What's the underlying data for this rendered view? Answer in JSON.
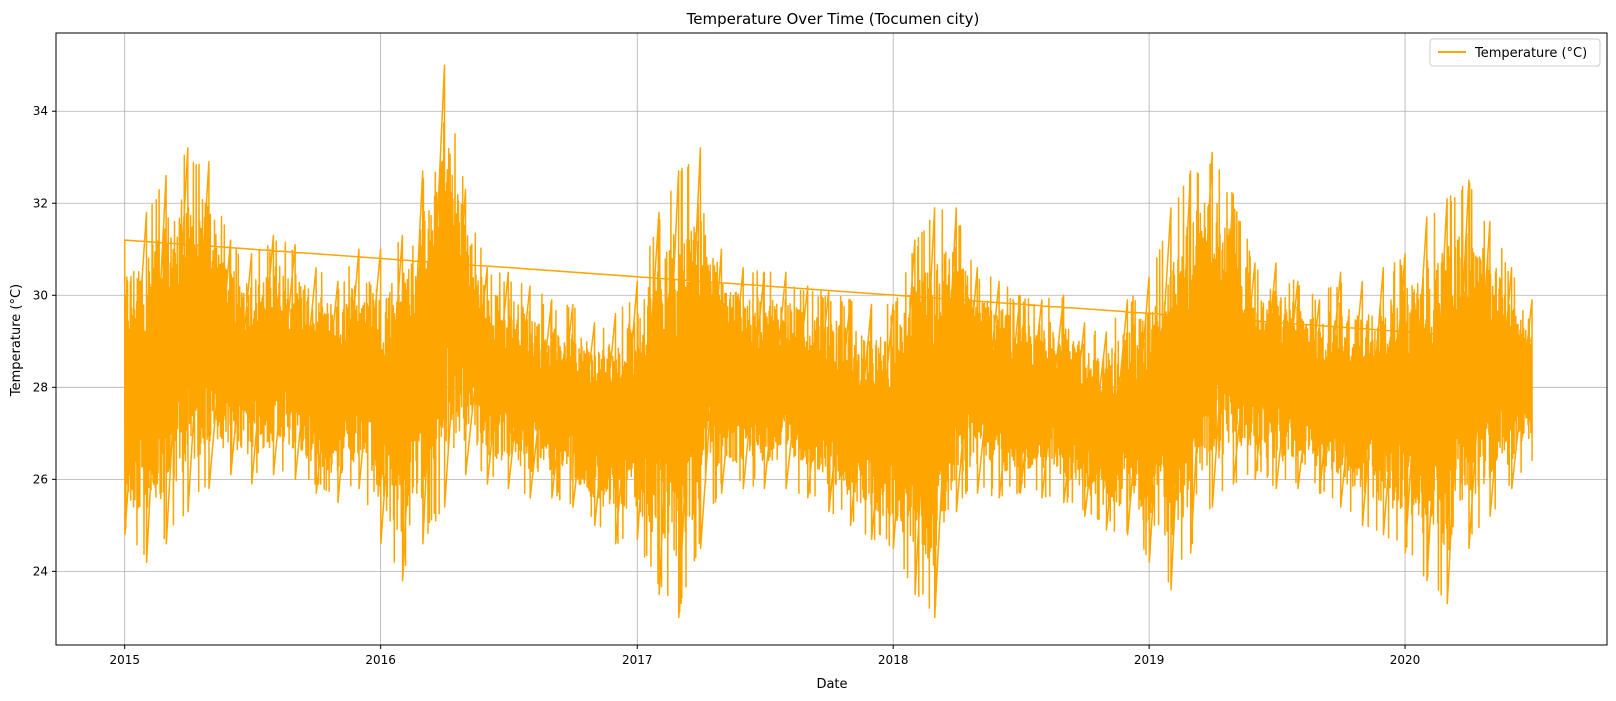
{
  "chart_data": {
    "type": "line",
    "title": "Temperature Over Time (Tocumen city)",
    "xlabel": "Date",
    "ylabel": "Temperature (°C)",
    "x_tick_labels": [
      "2015",
      "2016",
      "2017",
      "2018",
      "2019",
      "2020"
    ],
    "y_tick_labels": [
      "24",
      "26",
      "28",
      "30",
      "32",
      "34"
    ],
    "xlim": [
      "2014-09-25",
      "2020-10-15"
    ],
    "ylim": [
      22.4,
      35.7
    ],
    "x_ticks": [
      "2015-01-01",
      "2016-01-01",
      "2017-01-01",
      "2018-01-01",
      "2019-01-01",
      "2020-01-01"
    ],
    "y_ticks": [
      24,
      26,
      28,
      30,
      32,
      34
    ],
    "grid": true,
    "legend_position": "top-right",
    "series": [
      {
        "name": "Temperature (°C)",
        "color": "#ffa500",
        "x_range": [
          "2015-01-01",
          "2020-06-30"
        ],
        "envelope": {
          "dates": [
            "2015-01-01",
            "2015-02-01",
            "2015-03-01",
            "2015-04-01",
            "2015-05-01",
            "2015-06-01",
            "2015-07-01",
            "2015-08-01",
            "2015-09-01",
            "2015-10-01",
            "2015-11-01",
            "2015-12-01",
            "2016-01-01",
            "2016-02-01",
            "2016-03-01",
            "2016-04-01",
            "2016-05-01",
            "2016-06-01",
            "2016-07-01",
            "2016-08-01",
            "2016-09-01",
            "2016-10-01",
            "2016-11-01",
            "2016-12-01",
            "2017-01-01",
            "2017-02-01",
            "2017-03-01",
            "2017-04-01",
            "2017-05-01",
            "2017-06-01",
            "2017-07-01",
            "2017-08-01",
            "2017-09-01",
            "2017-10-01",
            "2017-11-01",
            "2017-12-01",
            "2018-01-01",
            "2018-02-01",
            "2018-03-01",
            "2018-04-01",
            "2018-05-01",
            "2018-06-01",
            "2018-07-01",
            "2018-08-01",
            "2018-09-01",
            "2018-10-01",
            "2018-11-01",
            "2018-12-01",
            "2019-01-01",
            "2019-02-01",
            "2019-03-01",
            "2019-04-01",
            "2019-05-01",
            "2019-06-01",
            "2019-07-01",
            "2019-08-01",
            "2019-09-01",
            "2019-10-01",
            "2019-11-01",
            "2019-12-01",
            "2020-01-01",
            "2020-02-01",
            "2020-03-01",
            "2020-04-01",
            "2020-05-01",
            "2020-06-01",
            "2020-06-30"
          ],
          "max": [
            31.2,
            31.8,
            32.6,
            33.2,
            32.9,
            31.2,
            30.9,
            31.3,
            31.1,
            30.6,
            30.3,
            31.0,
            31.0,
            31.3,
            32.7,
            35.0,
            32.3,
            30.6,
            30.5,
            30.2,
            29.9,
            29.8,
            29.4,
            29.6,
            30.3,
            31.8,
            32.7,
            33.2,
            31.0,
            30.6,
            30.5,
            30.5,
            30.2,
            30.1,
            29.9,
            29.8,
            29.8,
            31.2,
            31.9,
            31.9,
            30.6,
            30.3,
            30.0,
            29.9,
            30.0,
            29.4,
            29.2,
            29.9,
            30.4,
            31.9,
            32.7,
            33.1,
            32.2,
            30.7,
            30.7,
            30.3,
            29.9,
            30.5,
            30.3,
            30.6,
            30.9,
            31.7,
            32.1,
            32.5,
            31.6,
            30.6,
            29.9
          ],
          "min": [
            24.8,
            24.2,
            24.6,
            25.3,
            25.8,
            26.1,
            25.9,
            26.1,
            26.0,
            25.7,
            25.5,
            25.8,
            24.6,
            23.8,
            24.6,
            25.4,
            26.1,
            25.9,
            25.8,
            25.6,
            25.6,
            25.4,
            25.0,
            24.6,
            24.7,
            23.5,
            23.0,
            24.5,
            25.7,
            25.8,
            25.8,
            25.8,
            25.6,
            25.3,
            25.0,
            24.7,
            24.5,
            23.5,
            23.0,
            25.3,
            25.7,
            25.6,
            25.7,
            25.6,
            25.5,
            25.2,
            24.9,
            24.8,
            24.2,
            23.6,
            24.4,
            25.4,
            25.9,
            26.0,
            25.8,
            25.8,
            25.7,
            25.4,
            25.0,
            24.8,
            24.4,
            23.8,
            23.3,
            24.5,
            25.2,
            25.8,
            26.4
          ]
        }
      }
    ]
  }
}
